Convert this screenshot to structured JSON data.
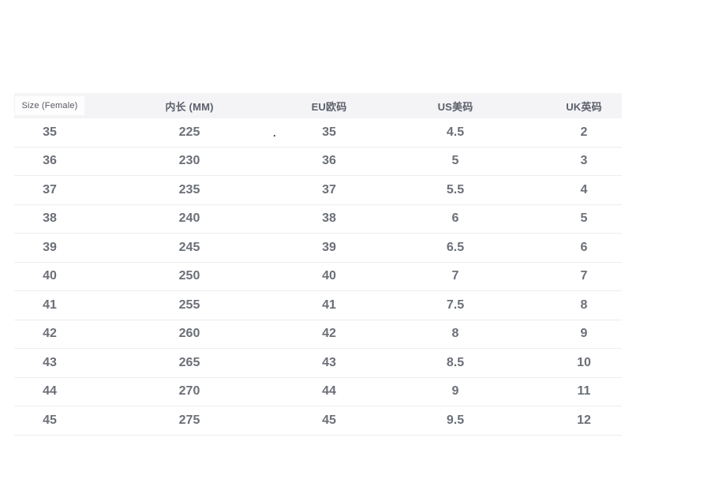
{
  "table": {
    "columns": [
      {
        "key": "size-female",
        "label": "Size (Female)"
      },
      {
        "key": "inner-length-mm",
        "label": "内长 (MM)"
      },
      {
        "key": "eu-size",
        "label": "EU欧码"
      },
      {
        "key": "us-size",
        "label": "US美码"
      },
      {
        "key": "uk-size",
        "label": "UK英码"
      }
    ],
    "rows": [
      [
        "35",
        "225",
        "35",
        "4.5",
        "2"
      ],
      [
        "36",
        "230",
        "36",
        "5",
        "3"
      ],
      [
        "37",
        "235",
        "37",
        "5.5",
        "4"
      ],
      [
        "38",
        "240",
        "38",
        "6",
        "5"
      ],
      [
        "39",
        "245",
        "39",
        "6.5",
        "6"
      ],
      [
        "40",
        "250",
        "40",
        "7",
        "7"
      ],
      [
        "41",
        "255",
        "41",
        "7.5",
        "8"
      ],
      [
        "42",
        "260",
        "42",
        "8",
        "9"
      ],
      [
        "43",
        "265",
        "43",
        "8.5",
        "10"
      ],
      [
        "44",
        "270",
        "44",
        "9",
        "11"
      ],
      [
        "45",
        "275",
        "45",
        "9.5",
        "12"
      ]
    ]
  },
  "artifact": {
    "stray_dot": "."
  },
  "colors": {
    "header_background": "#f4f4f6",
    "header_text": "#5c606b",
    "cell_text": "#6b6f77",
    "row_divider": "#ededf0",
    "page_background": "#ffffff"
  }
}
